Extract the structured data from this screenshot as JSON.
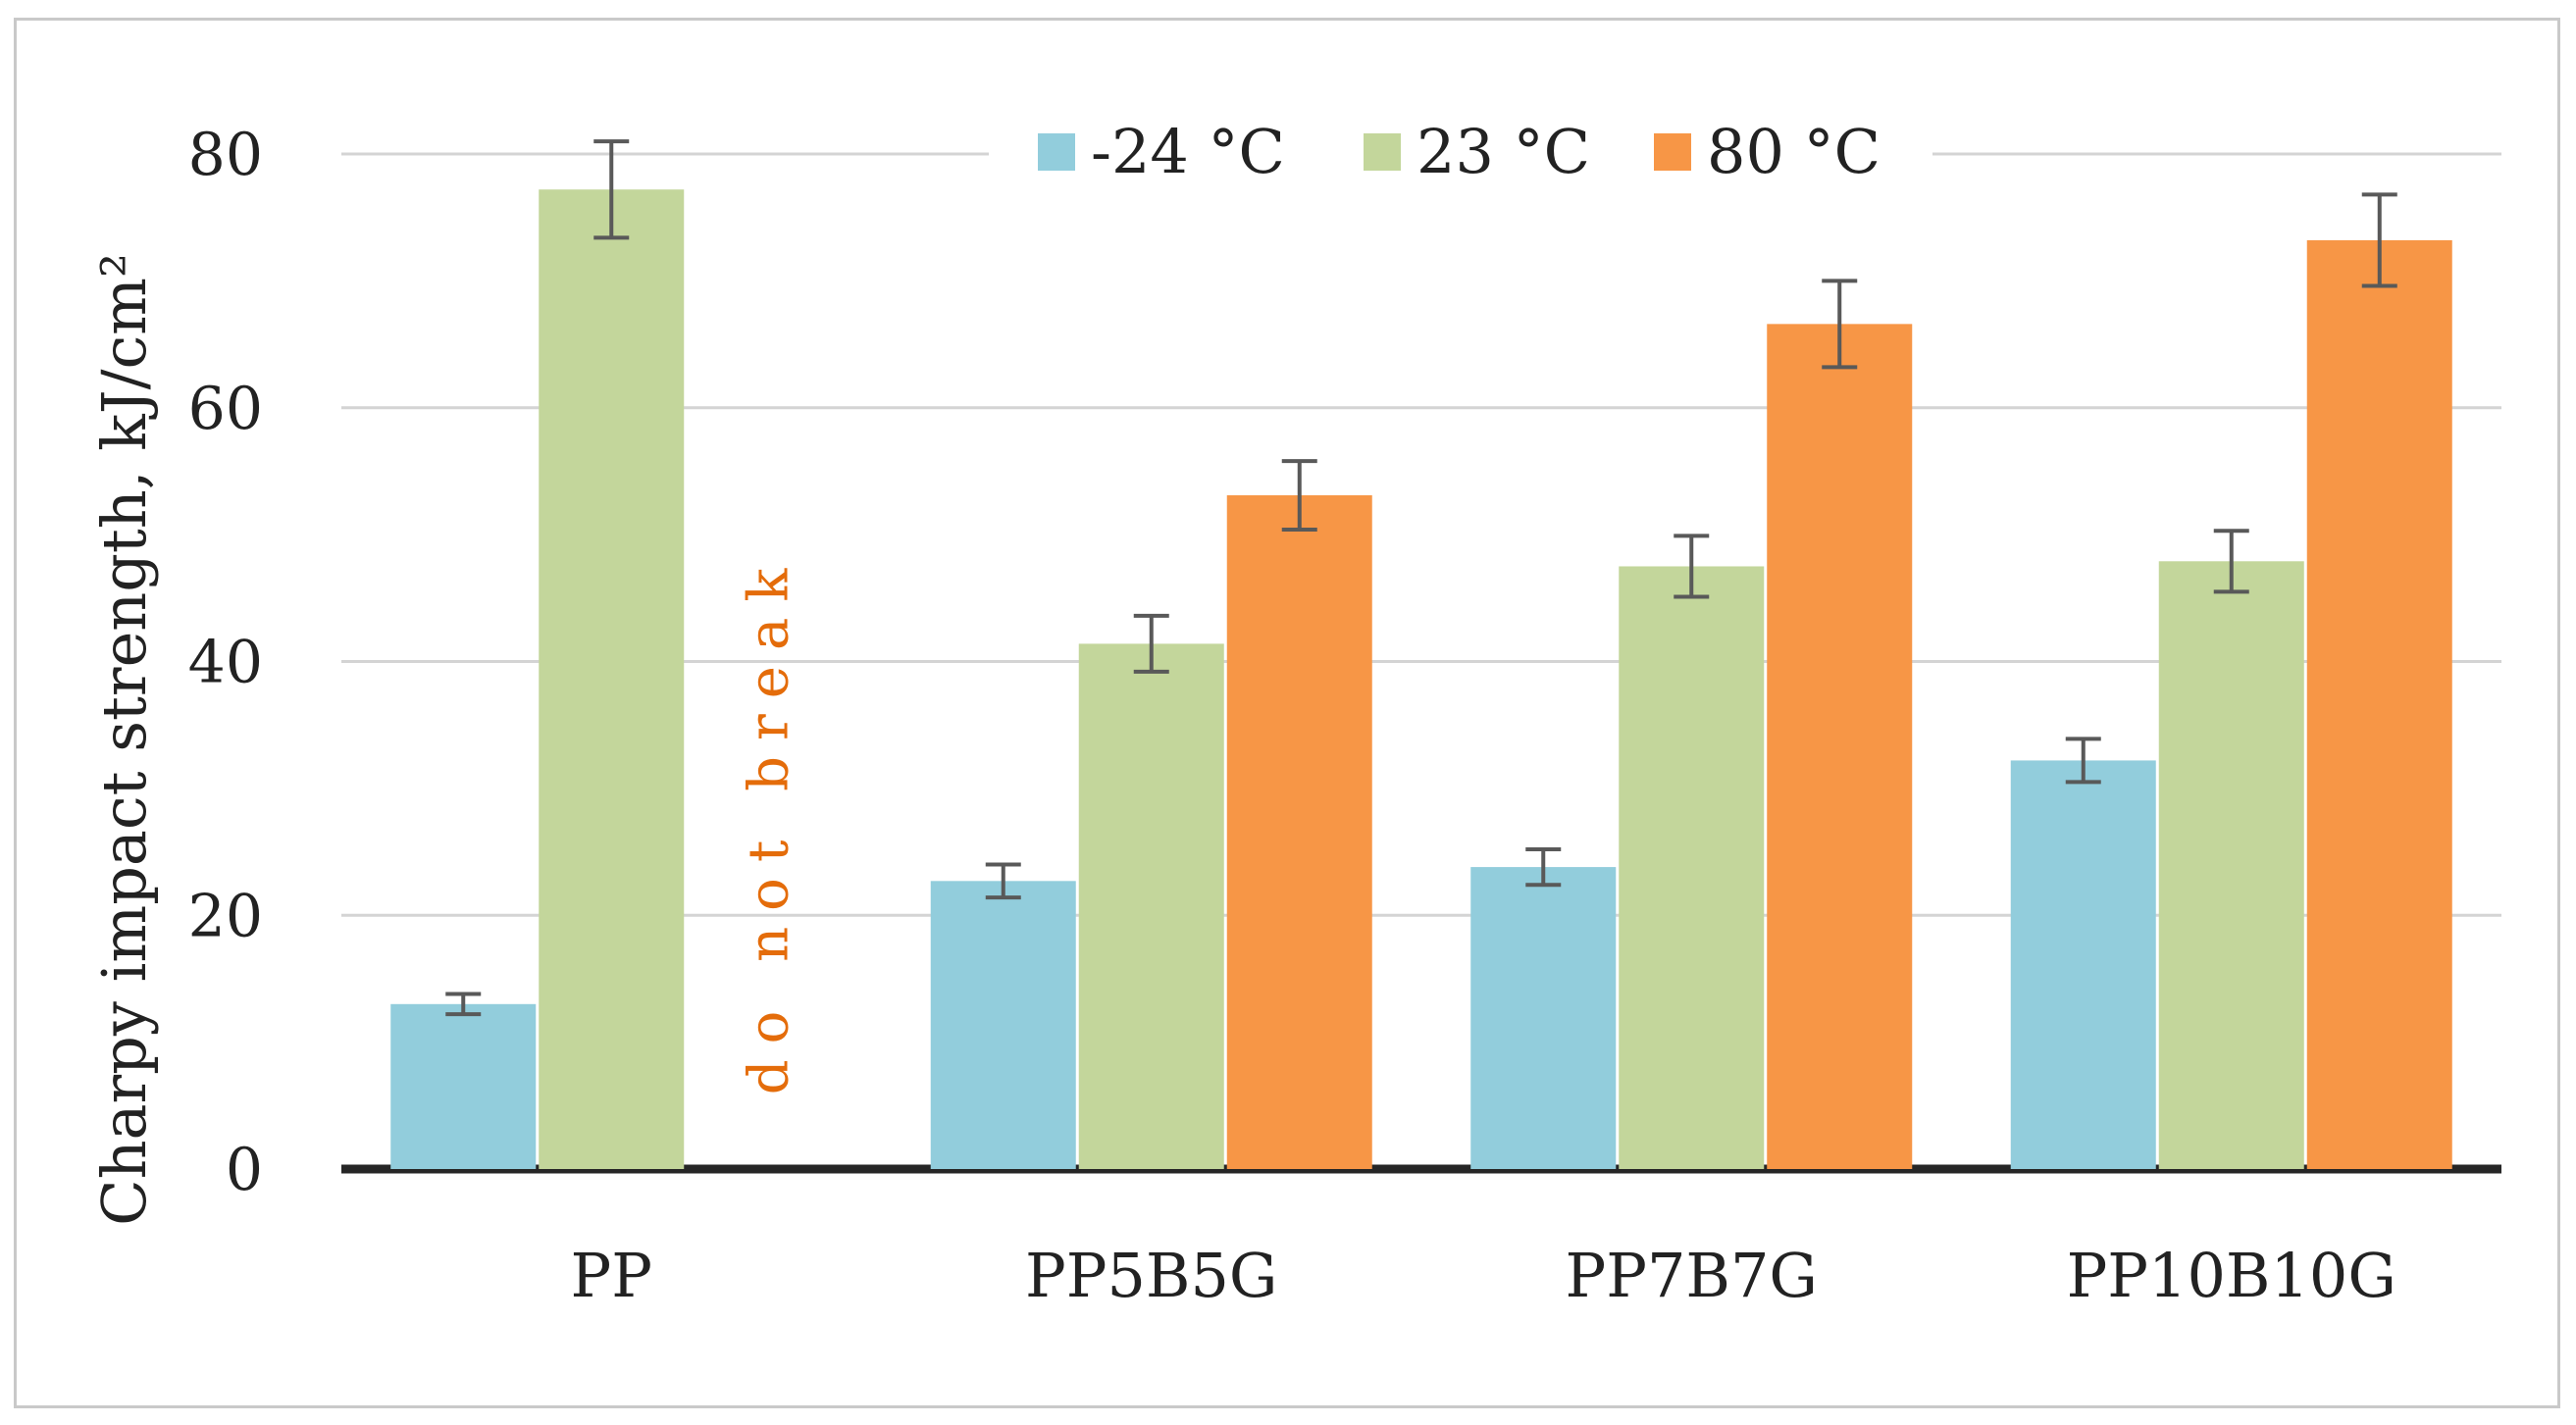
{
  "chart_data": {
    "type": "bar",
    "title": "",
    "xlabel": "",
    "ylabel": "Charpy impact strength, kJ/cm²",
    "ylim": [
      0,
      80
    ],
    "yticks": [
      0,
      20,
      40,
      60,
      80
    ],
    "grid": true,
    "legend_position": "top",
    "categories": [
      "PP",
      "PP5B5G",
      "PP7B7G",
      "PP10B10G"
    ],
    "series": [
      {
        "name": "-24 °C",
        "color": "#92cddc",
        "values": [
          13,
          22.7,
          23.8,
          32.2
        ],
        "errors": [
          0.8,
          1.3,
          1.4,
          1.7
        ]
      },
      {
        "name": "23 °C",
        "color": "#c3d69b",
        "values": [
          77.2,
          41.4,
          47.5,
          47.9
        ],
        "errors": [
          3.8,
          2.2,
          2.4,
          2.4
        ]
      },
      {
        "name": "80 °C",
        "color": "#f79646",
        "values": [
          null,
          53.1,
          66.6,
          73.2
        ],
        "errors": [
          null,
          2.7,
          3.4,
          3.6
        ]
      }
    ],
    "annotations": [
      {
        "text": "do not break",
        "category": "PP",
        "series": "80 °C",
        "color": "#e46c0a"
      }
    ]
  }
}
